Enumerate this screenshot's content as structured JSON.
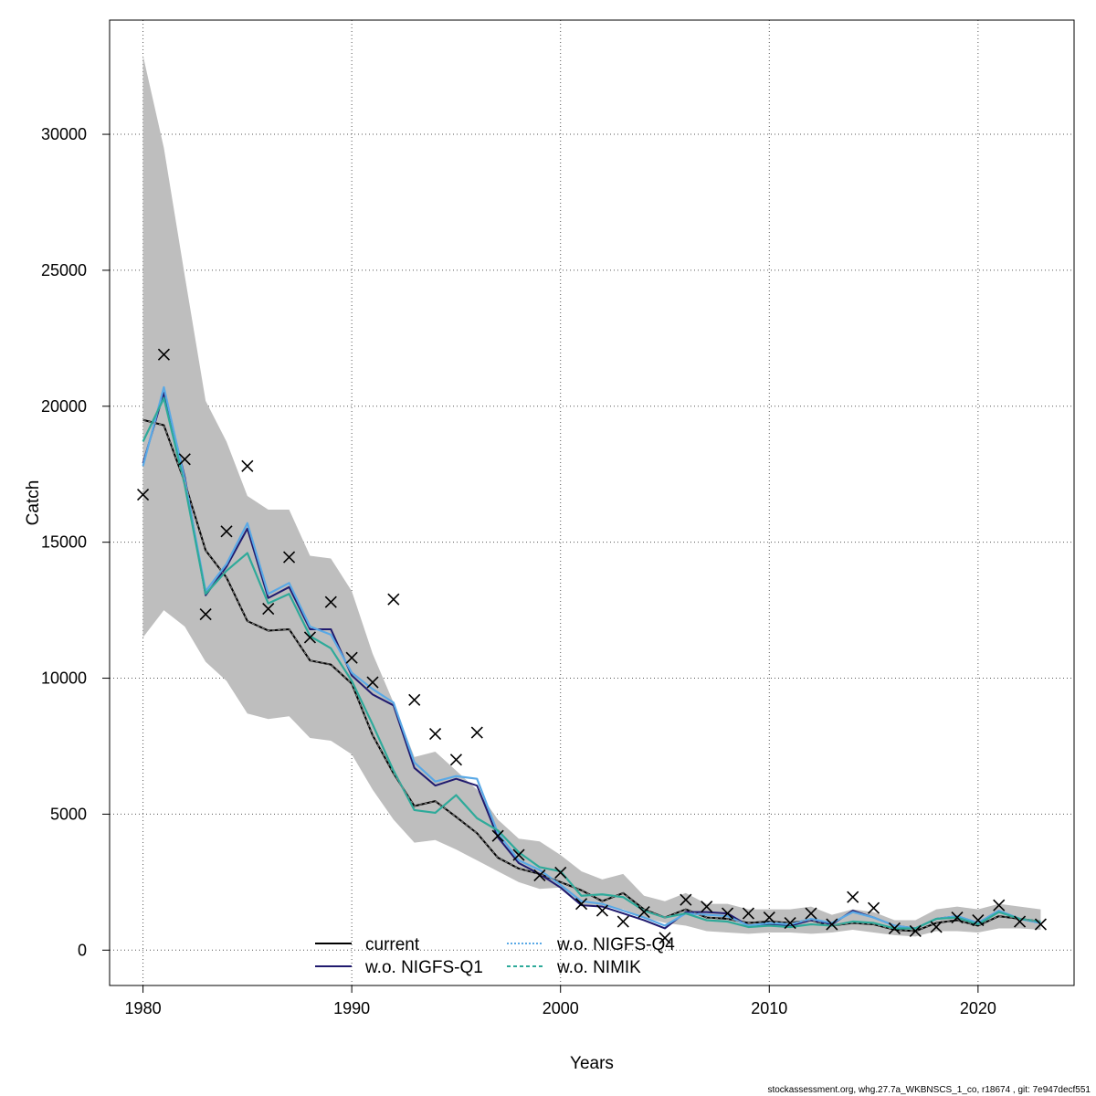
{
  "chart_data": {
    "type": "line",
    "title": "",
    "xlabel": "Years",
    "ylabel": "Catch",
    "xlim": [
      1978.4,
      2024.6
    ],
    "ylim": [
      -1300,
      34200
    ],
    "x_ticks": [
      1980,
      1990,
      2000,
      2010,
      2020
    ],
    "y_ticks": [
      0,
      5000,
      10000,
      15000,
      20000,
      25000,
      30000
    ],
    "grid": true,
    "legend_position": "bottom-center",
    "x": [
      1980,
      1981,
      1982,
      1983,
      1984,
      1985,
      1986,
      1987,
      1988,
      1989,
      1990,
      1991,
      1992,
      1993,
      1994,
      1995,
      1996,
      1997,
      1998,
      1999,
      2000,
      2001,
      2002,
      2003,
      2004,
      2005,
      2006,
      2007,
      2008,
      2009,
      2010,
      2011,
      2012,
      2013,
      2014,
      2015,
      2016,
      2017,
      2018,
      2019,
      2020,
      2021,
      2022,
      2023
    ],
    "confidence_band": {
      "color": "#bebebe",
      "upper": [
        32900,
        29500,
        24800,
        20200,
        18700,
        16700,
        16200,
        16200,
        14500,
        14400,
        13200,
        10900,
        9100,
        7100,
        7300,
        6600,
        5900,
        4800,
        4100,
        4000,
        3500,
        2900,
        2600,
        2800,
        2000,
        1800,
        2100,
        1700,
        1700,
        1500,
        1500,
        1500,
        1600,
        1300,
        1500,
        1400,
        1100,
        1100,
        1500,
        1600,
        1500,
        1700,
        1600,
        1500
      ],
      "lower": [
        11500,
        12500,
        11900,
        10600,
        9900,
        8700,
        8500,
        8600,
        7800,
        7700,
        7200,
        5900,
        4800,
        3950,
        4050,
        3700,
        3300,
        2900,
        2500,
        2250,
        2300,
        1700,
        1600,
        1500,
        1200,
        1000,
        900,
        700,
        650,
        600,
        650,
        650,
        600,
        650,
        750,
        650,
        550,
        500,
        700,
        700,
        650,
        800,
        800,
        750
      ]
    },
    "series": [
      {
        "name": "current",
        "color": "#000000",
        "style": "solid",
        "values": [
          19500,
          19300,
          17200,
          14700,
          13700,
          12100,
          11750,
          11800,
          10650,
          10500,
          9800,
          7900,
          6500,
          5300,
          5480,
          4900,
          4300,
          3400,
          3000,
          2800,
          2500,
          2200,
          1800,
          2100,
          1500,
          1200,
          1500,
          1200,
          1150,
          1000,
          1050,
          1000,
          1100,
          900,
          1000,
          950,
          750,
          700,
          1000,
          1100,
          900,
          1250,
          1150,
          1050
        ]
      },
      {
        "name": "w.o. NIGFS-Q1",
        "color": "#201a6e",
        "style": "solid",
        "values": [
          17900,
          20500,
          17400,
          13050,
          14100,
          15500,
          12950,
          13350,
          11800,
          11800,
          10100,
          9400,
          9000,
          6700,
          6050,
          6300,
          6050,
          4150,
          3200,
          2800,
          2300,
          1650,
          1600,
          1350,
          1100,
          800,
          1400,
          1400,
          1350,
          900,
          950,
          900,
          1100,
          950,
          1450,
          1200,
          900,
          800,
          1150,
          1250,
          1000,
          1450,
          1150,
          1000
        ]
      },
      {
        "name": "w.o. NIGFS-Q4",
        "color": "#5aa9e6",
        "style": "dotted",
        "values": [
          17800,
          20700,
          17300,
          13200,
          14200,
          15700,
          13100,
          13500,
          11900,
          11600,
          10200,
          9600,
          9100,
          6900,
          6200,
          6400,
          6300,
          4300,
          3300,
          2950,
          2400,
          1800,
          1700,
          1450,
          1200,
          900,
          1350,
          1300,
          1250,
          900,
          1000,
          950,
          1150,
          1000,
          1400,
          1200,
          900,
          800,
          1150,
          1250,
          1000,
          1450,
          1150,
          1000
        ]
      },
      {
        "name": "w.o. NIMIK",
        "color": "#2eaa9a",
        "style": "dashed",
        "values": [
          18700,
          20300,
          17100,
          13100,
          13950,
          14600,
          12750,
          13100,
          11550,
          11100,
          9900,
          8300,
          6600,
          5150,
          5050,
          5700,
          4850,
          4400,
          3600,
          3050,
          2900,
          2000,
          2050,
          1950,
          1450,
          1200,
          1350,
          1100,
          1050,
          850,
          900,
          850,
          950,
          900,
          1050,
          1000,
          800,
          800,
          1150,
          1200,
          950,
          1400,
          1150,
          1050
        ]
      }
    ],
    "observations": {
      "marker": "x",
      "values": [
        16750,
        21900,
        18050,
        12350,
        15400,
        17800,
        12550,
        14450,
        11500,
        12800,
        10750,
        9850,
        12900,
        9200,
        7950,
        7000,
        8000,
        4200,
        3500,
        2750,
        2850,
        1700,
        1450,
        1050,
        1400,
        450,
        1850,
        1600,
        1350,
        1350,
        1200,
        1000,
        1350,
        950,
        1950,
        1550,
        800,
        700,
        850,
        1200,
        1100,
        1650,
        1050,
        950
      ]
    }
  },
  "footer": {
    "text": "stockassessment.org, whg.27.7a_WKBNSCS_1_co, r18674 , git: 7e947decf551"
  }
}
